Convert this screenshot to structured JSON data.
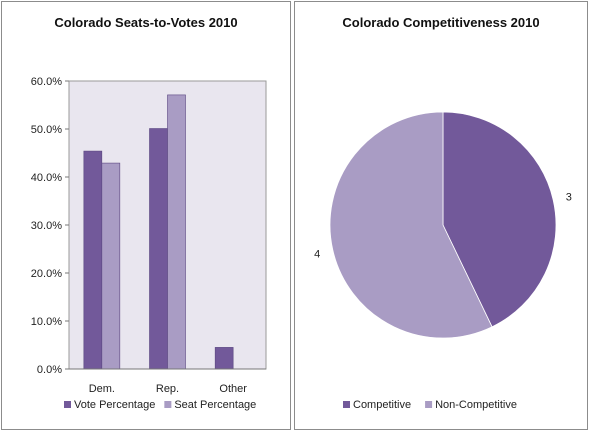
{
  "chart_data": [
    {
      "type": "bar",
      "title": "Colorado Seats-to-Votes 2010",
      "categories": [
        "Dem.",
        "Rep.",
        "Other"
      ],
      "series": [
        {
          "name": "Vote Percentage",
          "values": [
            45.4,
            50.1,
            4.5
          ],
          "color": "#72599a"
        },
        {
          "name": "Seat Percentage",
          "values": [
            42.9,
            57.1,
            0.0
          ],
          "color": "#a99cc4"
        }
      ],
      "ylim": [
        0,
        60
      ],
      "yticks": [
        "0.0%",
        "10.0%",
        "20.0%",
        "30.0%",
        "40.0%",
        "50.0%",
        "60.0%"
      ],
      "plot_background": "#e9e6ef",
      "legend": "bottom"
    },
    {
      "type": "pie",
      "title": "Colorado Competitiveness 2010",
      "slices": [
        {
          "name": "Competitive",
          "value": 3,
          "label": "3",
          "color": "#72599a"
        },
        {
          "name": "Non-Competitive",
          "value": 4,
          "label": "4",
          "color": "#a99cc4"
        }
      ],
      "legend": "bottom"
    }
  ]
}
